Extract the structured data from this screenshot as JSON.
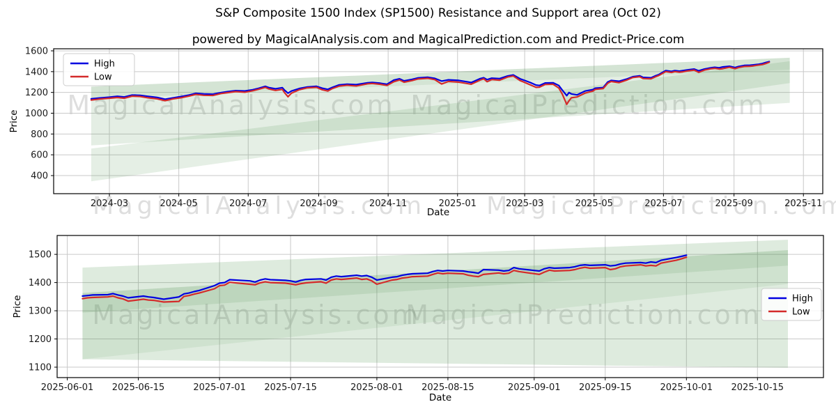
{
  "page": {
    "title_line1": "S&P Composite 1500 Index (SP1500) Resistance and Support area (Oct 02)",
    "title_line2": "powered by MagicalAnalysis.com and MagicalPrediction.com and Predict-Price.com"
  },
  "watermarks": {
    "analysis": "MagicalAnalysis.com",
    "prediction": "MagicalPrediction.com"
  },
  "style": {
    "grid_color": "#c9c9c9",
    "spine_color": "#000000",
    "tick_label_color": "#1a1a1a",
    "band_color": "#4a8f4a",
    "high_color": "#0000e0",
    "low_color": "#d42a2a",
    "legend_bg": "#ffffff",
    "legend_border": "#cccccc"
  },
  "chart_data": [
    {
      "type": "line",
      "title": "S&P Composite 1500 Index (SP1500) Resistance and Support area (Oct 02)",
      "xlabel": "Date",
      "ylabel": "Price",
      "grid": true,
      "legend": {
        "position": "upper-left",
        "entries": [
          "High",
          "Low"
        ]
      },
      "x_axis": {
        "min": "2024-01-12",
        "max": "2025-11-18",
        "ticks": [
          {
            "label": "2024-03",
            "date": "2024-03-01"
          },
          {
            "label": "2024-05",
            "date": "2024-05-01"
          },
          {
            "label": "2024-07",
            "date": "2024-07-01"
          },
          {
            "label": "2024-09",
            "date": "2024-09-01"
          },
          {
            "label": "2024-11",
            "date": "2024-11-01"
          },
          {
            "label": "2025-01",
            "date": "2025-01-01"
          },
          {
            "label": "2025-03",
            "date": "2025-03-01"
          },
          {
            "label": "2025-05",
            "date": "2025-05-01"
          },
          {
            "label": "2025-07",
            "date": "2025-07-01"
          },
          {
            "label": "2025-09",
            "date": "2025-09-01"
          },
          {
            "label": "2025-11",
            "date": "2025-11-01"
          }
        ]
      },
      "y_axis": {
        "min": 226,
        "max": 1620,
        "ticks": [
          400,
          600,
          800,
          1000,
          1200,
          1400,
          1600
        ]
      },
      "series": [
        {
          "name": "High",
          "color": "#0000e0"
        },
        {
          "name": "Low",
          "color": "#d42a2a"
        }
      ],
      "dates": [
        "2024-02-14",
        "2024-02-21",
        "2024-03-01",
        "2024-03-08",
        "2024-03-14",
        "2024-03-21",
        "2024-03-28",
        "2024-04-04",
        "2024-04-12",
        "2024-04-19",
        "2024-04-26",
        "2024-05-03",
        "2024-05-10",
        "2024-05-16",
        "2024-05-23",
        "2024-05-31",
        "2024-06-07",
        "2024-06-13",
        "2024-06-20",
        "2024-06-28",
        "2024-07-05",
        "2024-07-10",
        "2024-07-16",
        "2024-07-19",
        "2024-07-25",
        "2024-07-31",
        "2024-08-02",
        "2024-08-05",
        "2024-08-08",
        "2024-08-15",
        "2024-08-22",
        "2024-08-30",
        "2024-09-04",
        "2024-09-09",
        "2024-09-13",
        "2024-09-19",
        "2024-09-26",
        "2024-10-04",
        "2024-10-14",
        "2024-10-18",
        "2024-10-25",
        "2024-10-31",
        "2024-11-06",
        "2024-11-11",
        "2024-11-15",
        "2024-11-22",
        "2024-11-27",
        "2024-12-06",
        "2024-12-12",
        "2024-12-18",
        "2024-12-24",
        "2025-01-02",
        "2025-01-10",
        "2025-01-13",
        "2025-01-21",
        "2025-01-24",
        "2025-01-27",
        "2025-01-31",
        "2025-02-07",
        "2025-02-14",
        "2025-02-19",
        "2025-02-25",
        "2025-02-28",
        "2025-03-06",
        "2025-03-11",
        "2025-03-14",
        "2025-03-19",
        "2025-03-26",
        "2025-03-31",
        "2025-04-03",
        "2025-04-07",
        "2025-04-09",
        "2025-04-11",
        "2025-04-16",
        "2025-04-23",
        "2025-04-30",
        "2025-05-02",
        "2025-05-09",
        "2025-05-13",
        "2025-05-16",
        "2025-05-23",
        "2025-05-30",
        "2025-06-04",
        "2025-06-10",
        "2025-06-13",
        "2025-06-20",
        "2025-06-24",
        "2025-06-27",
        "2025-07-01",
        "2025-07-03",
        "2025-07-08",
        "2025-07-11",
        "2025-07-15",
        "2025-07-18",
        "2025-07-23",
        "2025-07-28",
        "2025-08-01",
        "2025-08-06",
        "2025-08-12",
        "2025-08-15",
        "2025-08-19",
        "2025-08-22",
        "2025-08-28",
        "2025-09-02",
        "2025-09-05",
        "2025-09-10",
        "2025-09-15",
        "2025-09-18",
        "2025-09-22",
        "2025-09-26",
        "2025-09-29",
        "2025-10-02"
      ],
      "high": [
        1138,
        1146,
        1154,
        1163,
        1156,
        1174,
        1172,
        1162,
        1152,
        1135,
        1148,
        1160,
        1175,
        1191,
        1186,
        1183,
        1198,
        1208,
        1217,
        1214,
        1226,
        1239,
        1259,
        1247,
        1235,
        1246,
        1221,
        1193,
        1213,
        1238,
        1253,
        1259,
        1241,
        1229,
        1249,
        1273,
        1279,
        1275,
        1293,
        1296,
        1289,
        1279,
        1319,
        1331,
        1311,
        1326,
        1339,
        1346,
        1335,
        1309,
        1321,
        1316,
        1301,
        1295,
        1333,
        1341,
        1323,
        1337,
        1333,
        1358,
        1368,
        1331,
        1319,
        1295,
        1271,
        1267,
        1291,
        1293,
        1267,
        1223,
        1169,
        1199,
        1186,
        1176,
        1213,
        1227,
        1241,
        1247,
        1300,
        1315,
        1308,
        1330,
        1351,
        1360,
        1345,
        1341,
        1360,
        1372,
        1398,
        1410,
        1402,
        1410,
        1405,
        1410,
        1418,
        1425,
        1408,
        1425,
        1438,
        1442,
        1437,
        1445,
        1452,
        1440,
        1450,
        1460,
        1462,
        1465,
        1470,
        1478,
        1488,
        1497
      ],
      "low": [
        1127,
        1136,
        1144,
        1151,
        1144,
        1164,
        1161,
        1148,
        1138,
        1121,
        1138,
        1149,
        1165,
        1181,
        1172,
        1171,
        1189,
        1198,
        1208,
        1202,
        1216,
        1230,
        1249,
        1234,
        1219,
        1229,
        1197,
        1158,
        1193,
        1226,
        1244,
        1249,
        1226,
        1213,
        1237,
        1261,
        1269,
        1262,
        1283,
        1286,
        1278,
        1267,
        1303,
        1320,
        1298,
        1314,
        1329,
        1336,
        1323,
        1281,
        1306,
        1299,
        1284,
        1279,
        1319,
        1331,
        1303,
        1324,
        1318,
        1348,
        1358,
        1314,
        1301,
        1272,
        1249,
        1251,
        1276,
        1279,
        1243,
        1186,
        1085,
        1120,
        1148,
        1156,
        1193,
        1213,
        1229,
        1237,
        1288,
        1305,
        1294,
        1320,
        1343,
        1351,
        1334,
        1331,
        1350,
        1363,
        1388,
        1400,
        1392,
        1400,
        1395,
        1398,
        1408,
        1415,
        1393,
        1415,
        1428,
        1432,
        1425,
        1428,
        1442,
        1428,
        1440,
        1450,
        1452,
        1455,
        1462,
        1468,
        1478,
        1490
      ],
      "bands": [
        {
          "x0": "2024-02-14",
          "x1": "2025-10-20",
          "top0": 1256,
          "top1": 1534,
          "bot0": 1138,
          "bot1": 1420,
          "opacity": 0.24
        },
        {
          "x0": "2024-02-14",
          "x1": "2025-10-20",
          "top0": 1138,
          "top1": 1420,
          "bot0": 690,
          "bot1": 1100,
          "opacity": 0.15
        },
        {
          "x0": "2024-02-14",
          "x1": "2025-10-20",
          "top0": 660,
          "top1": 1500,
          "bot0": 345,
          "bot1": 1290,
          "opacity": 0.14
        }
      ]
    },
    {
      "type": "line",
      "title": "",
      "xlabel": "Date",
      "ylabel": "Price",
      "grid": true,
      "legend": {
        "position": "center-right",
        "entries": [
          "High",
          "Low"
        ]
      },
      "x_axis": {
        "min": "2025-05-30",
        "max": "2025-10-28",
        "ticks": [
          {
            "label": "2025-06-01",
            "date": "2025-06-01"
          },
          {
            "label": "2025-06-15",
            "date": "2025-06-15"
          },
          {
            "label": "2025-07-01",
            "date": "2025-07-01"
          },
          {
            "label": "2025-07-15",
            "date": "2025-07-15"
          },
          {
            "label": "2025-08-01",
            "date": "2025-08-01"
          },
          {
            "label": "2025-08-15",
            "date": "2025-08-15"
          },
          {
            "label": "2025-09-01",
            "date": "2025-09-01"
          },
          {
            "label": "2025-09-15",
            "date": "2025-09-15"
          },
          {
            "label": "2025-10-01",
            "date": "2025-10-01"
          },
          {
            "label": "2025-10-15",
            "date": "2025-10-15"
          }
        ]
      },
      "y_axis": {
        "min": 1063,
        "max": 1567,
        "ticks": [
          1100,
          1200,
          1300,
          1400,
          1500
        ]
      },
      "series": [
        {
          "name": "High",
          "color": "#0000e0"
        },
        {
          "name": "Low",
          "color": "#d42a2a"
        }
      ],
      "dates": [
        "2025-06-04",
        "2025-06-05",
        "2025-06-06",
        "2025-06-09",
        "2025-06-10",
        "2025-06-11",
        "2025-06-12",
        "2025-06-13",
        "2025-06-16",
        "2025-06-17",
        "2025-06-18",
        "2025-06-20",
        "2025-06-23",
        "2025-06-24",
        "2025-06-25",
        "2025-06-26",
        "2025-06-27",
        "2025-06-30",
        "2025-07-01",
        "2025-07-02",
        "2025-07-03",
        "2025-07-07",
        "2025-07-08",
        "2025-07-09",
        "2025-07-10",
        "2025-07-11",
        "2025-07-14",
        "2025-07-15",
        "2025-07-16",
        "2025-07-17",
        "2025-07-18",
        "2025-07-21",
        "2025-07-22",
        "2025-07-23",
        "2025-07-24",
        "2025-07-25",
        "2025-07-28",
        "2025-07-29",
        "2025-07-30",
        "2025-07-31",
        "2025-08-01",
        "2025-08-04",
        "2025-08-05",
        "2025-08-06",
        "2025-08-07",
        "2025-08-08",
        "2025-08-11",
        "2025-08-12",
        "2025-08-13",
        "2025-08-14",
        "2025-08-15",
        "2025-08-18",
        "2025-08-19",
        "2025-08-20",
        "2025-08-21",
        "2025-08-22",
        "2025-08-25",
        "2025-08-26",
        "2025-08-27",
        "2025-08-28",
        "2025-08-29",
        "2025-09-02",
        "2025-09-03",
        "2025-09-04",
        "2025-09-05",
        "2025-09-08",
        "2025-09-09",
        "2025-09-10",
        "2025-09-11",
        "2025-09-12",
        "2025-09-15",
        "2025-09-16",
        "2025-09-17",
        "2025-09-18",
        "2025-09-19",
        "2025-09-22",
        "2025-09-23",
        "2025-09-24",
        "2025-09-25",
        "2025-09-26",
        "2025-09-29",
        "2025-09-30",
        "2025-10-01"
      ],
      "high": [
        1352,
        1354,
        1356,
        1357,
        1361,
        1356,
        1352,
        1346,
        1352,
        1349,
        1347,
        1341,
        1349,
        1360,
        1363,
        1368,
        1372,
        1389,
        1398,
        1400,
        1410,
        1406,
        1402,
        1409,
        1413,
        1410,
        1408,
        1406,
        1402,
        1408,
        1411,
        1413,
        1409,
        1419,
        1423,
        1421,
        1426,
        1423,
        1425,
        1419,
        1409,
        1419,
        1421,
        1426,
        1429,
        1431,
        1433,
        1439,
        1443,
        1441,
        1443,
        1441,
        1438,
        1436,
        1433,
        1446,
        1444,
        1441,
        1443,
        1453,
        1449,
        1441,
        1449,
        1453,
        1451,
        1453,
        1456,
        1461,
        1463,
        1461,
        1463,
        1459,
        1461,
        1466,
        1469,
        1471,
        1469,
        1473,
        1471,
        1479,
        1489,
        1493,
        1497
      ],
      "low": [
        1343,
        1346,
        1347,
        1349,
        1352,
        1346,
        1342,
        1334,
        1341,
        1338,
        1337,
        1331,
        1333,
        1351,
        1354,
        1359,
        1363,
        1378,
        1389,
        1391,
        1401,
        1394,
        1392,
        1399,
        1403,
        1400,
        1398,
        1395,
        1392,
        1396,
        1399,
        1403,
        1398,
        1409,
        1413,
        1411,
        1416,
        1411,
        1413,
        1406,
        1394,
        1409,
        1411,
        1416,
        1418,
        1421,
        1423,
        1429,
        1434,
        1431,
        1433,
        1431,
        1426,
        1423,
        1421,
        1429,
        1434,
        1431,
        1433,
        1443,
        1439,
        1429,
        1437,
        1444,
        1441,
        1443,
        1446,
        1451,
        1454,
        1451,
        1453,
        1446,
        1449,
        1456,
        1459,
        1463,
        1459,
        1461,
        1459,
        1469,
        1479,
        1484,
        1490
      ],
      "bands": [
        {
          "x0": "2025-06-04",
          "x1": "2025-10-21",
          "top0": 1453,
          "top1": 1552,
          "bot0": 1128,
          "bot1": 1098,
          "opacity": 0.18
        },
        {
          "x0": "2025-06-04",
          "x1": "2025-10-21",
          "top0": 1363,
          "top1": 1515,
          "bot0": 1293,
          "bot1": 1460,
          "opacity": 0.22
        },
        {
          "x0": "2025-06-04",
          "x1": "2025-10-21",
          "top0": 1293,
          "top1": 1460,
          "bot0": 1128,
          "bot1": 1395,
          "opacity": 0.1
        }
      ]
    }
  ]
}
